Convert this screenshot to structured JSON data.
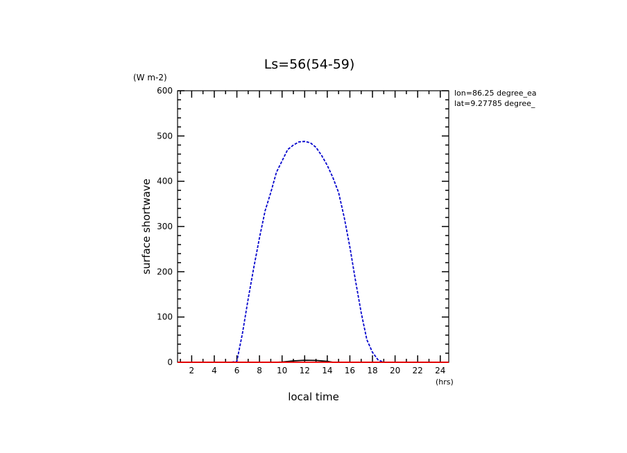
{
  "chart_data": {
    "type": "line",
    "title": "Ls=56(54-59)",
    "xlabel": "local time",
    "xunit": "(hrs)",
    "ylabel": "surface shortwave",
    "yunit": "(W m-2)",
    "xlim": [
      0.75,
      24.75
    ],
    "ylim": [
      0,
      600
    ],
    "xticks_major": [
      2,
      4,
      6,
      8,
      10,
      12,
      14,
      16,
      18,
      20,
      22,
      24
    ],
    "yticks_major": [
      0,
      100,
      200,
      300,
      400,
      500,
      600
    ],
    "x_minor_step": 1,
    "y_minor_step": 20,
    "grid": false,
    "legend": "none",
    "annotations": [
      "lon=86.25 degree_ea",
      "lat=9.27785 degree_"
    ],
    "series": [
      {
        "color": "#0000cc",
        "dash": true,
        "x": [
          0.75,
          1,
          2,
          3,
          4,
          5,
          5.5,
          6,
          6.5,
          7,
          7.5,
          8,
          8.5,
          9,
          9.5,
          10,
          10.5,
          11,
          11.5,
          12,
          12.5,
          13,
          13.5,
          14,
          14.5,
          15,
          15.5,
          16,
          16.5,
          17,
          17.5,
          18,
          18.5,
          19,
          20,
          21,
          22,
          23,
          24,
          24.75
        ],
        "y": [
          0,
          0,
          0,
          0,
          0,
          0,
          0,
          2,
          65,
          140,
          210,
          275,
          335,
          375,
          420,
          445,
          470,
          480,
          487,
          488,
          485,
          475,
          457,
          435,
          408,
          375,
          320,
          255,
          180,
          110,
          50,
          22,
          5,
          0,
          0,
          0,
          0,
          0,
          0,
          0
        ]
      },
      {
        "color": "#000000",
        "dash": false,
        "x": [
          0.75,
          9.5,
          10,
          11,
          12,
          13,
          14,
          14.5,
          24.75
        ],
        "y": [
          0,
          0,
          0.5,
          3,
          4.5,
          4,
          2,
          0,
          0
        ]
      },
      {
        "color": "#ff0000",
        "dash": false,
        "x": [
          0.75,
          24.75
        ],
        "y": [
          0,
          0
        ]
      }
    ]
  }
}
